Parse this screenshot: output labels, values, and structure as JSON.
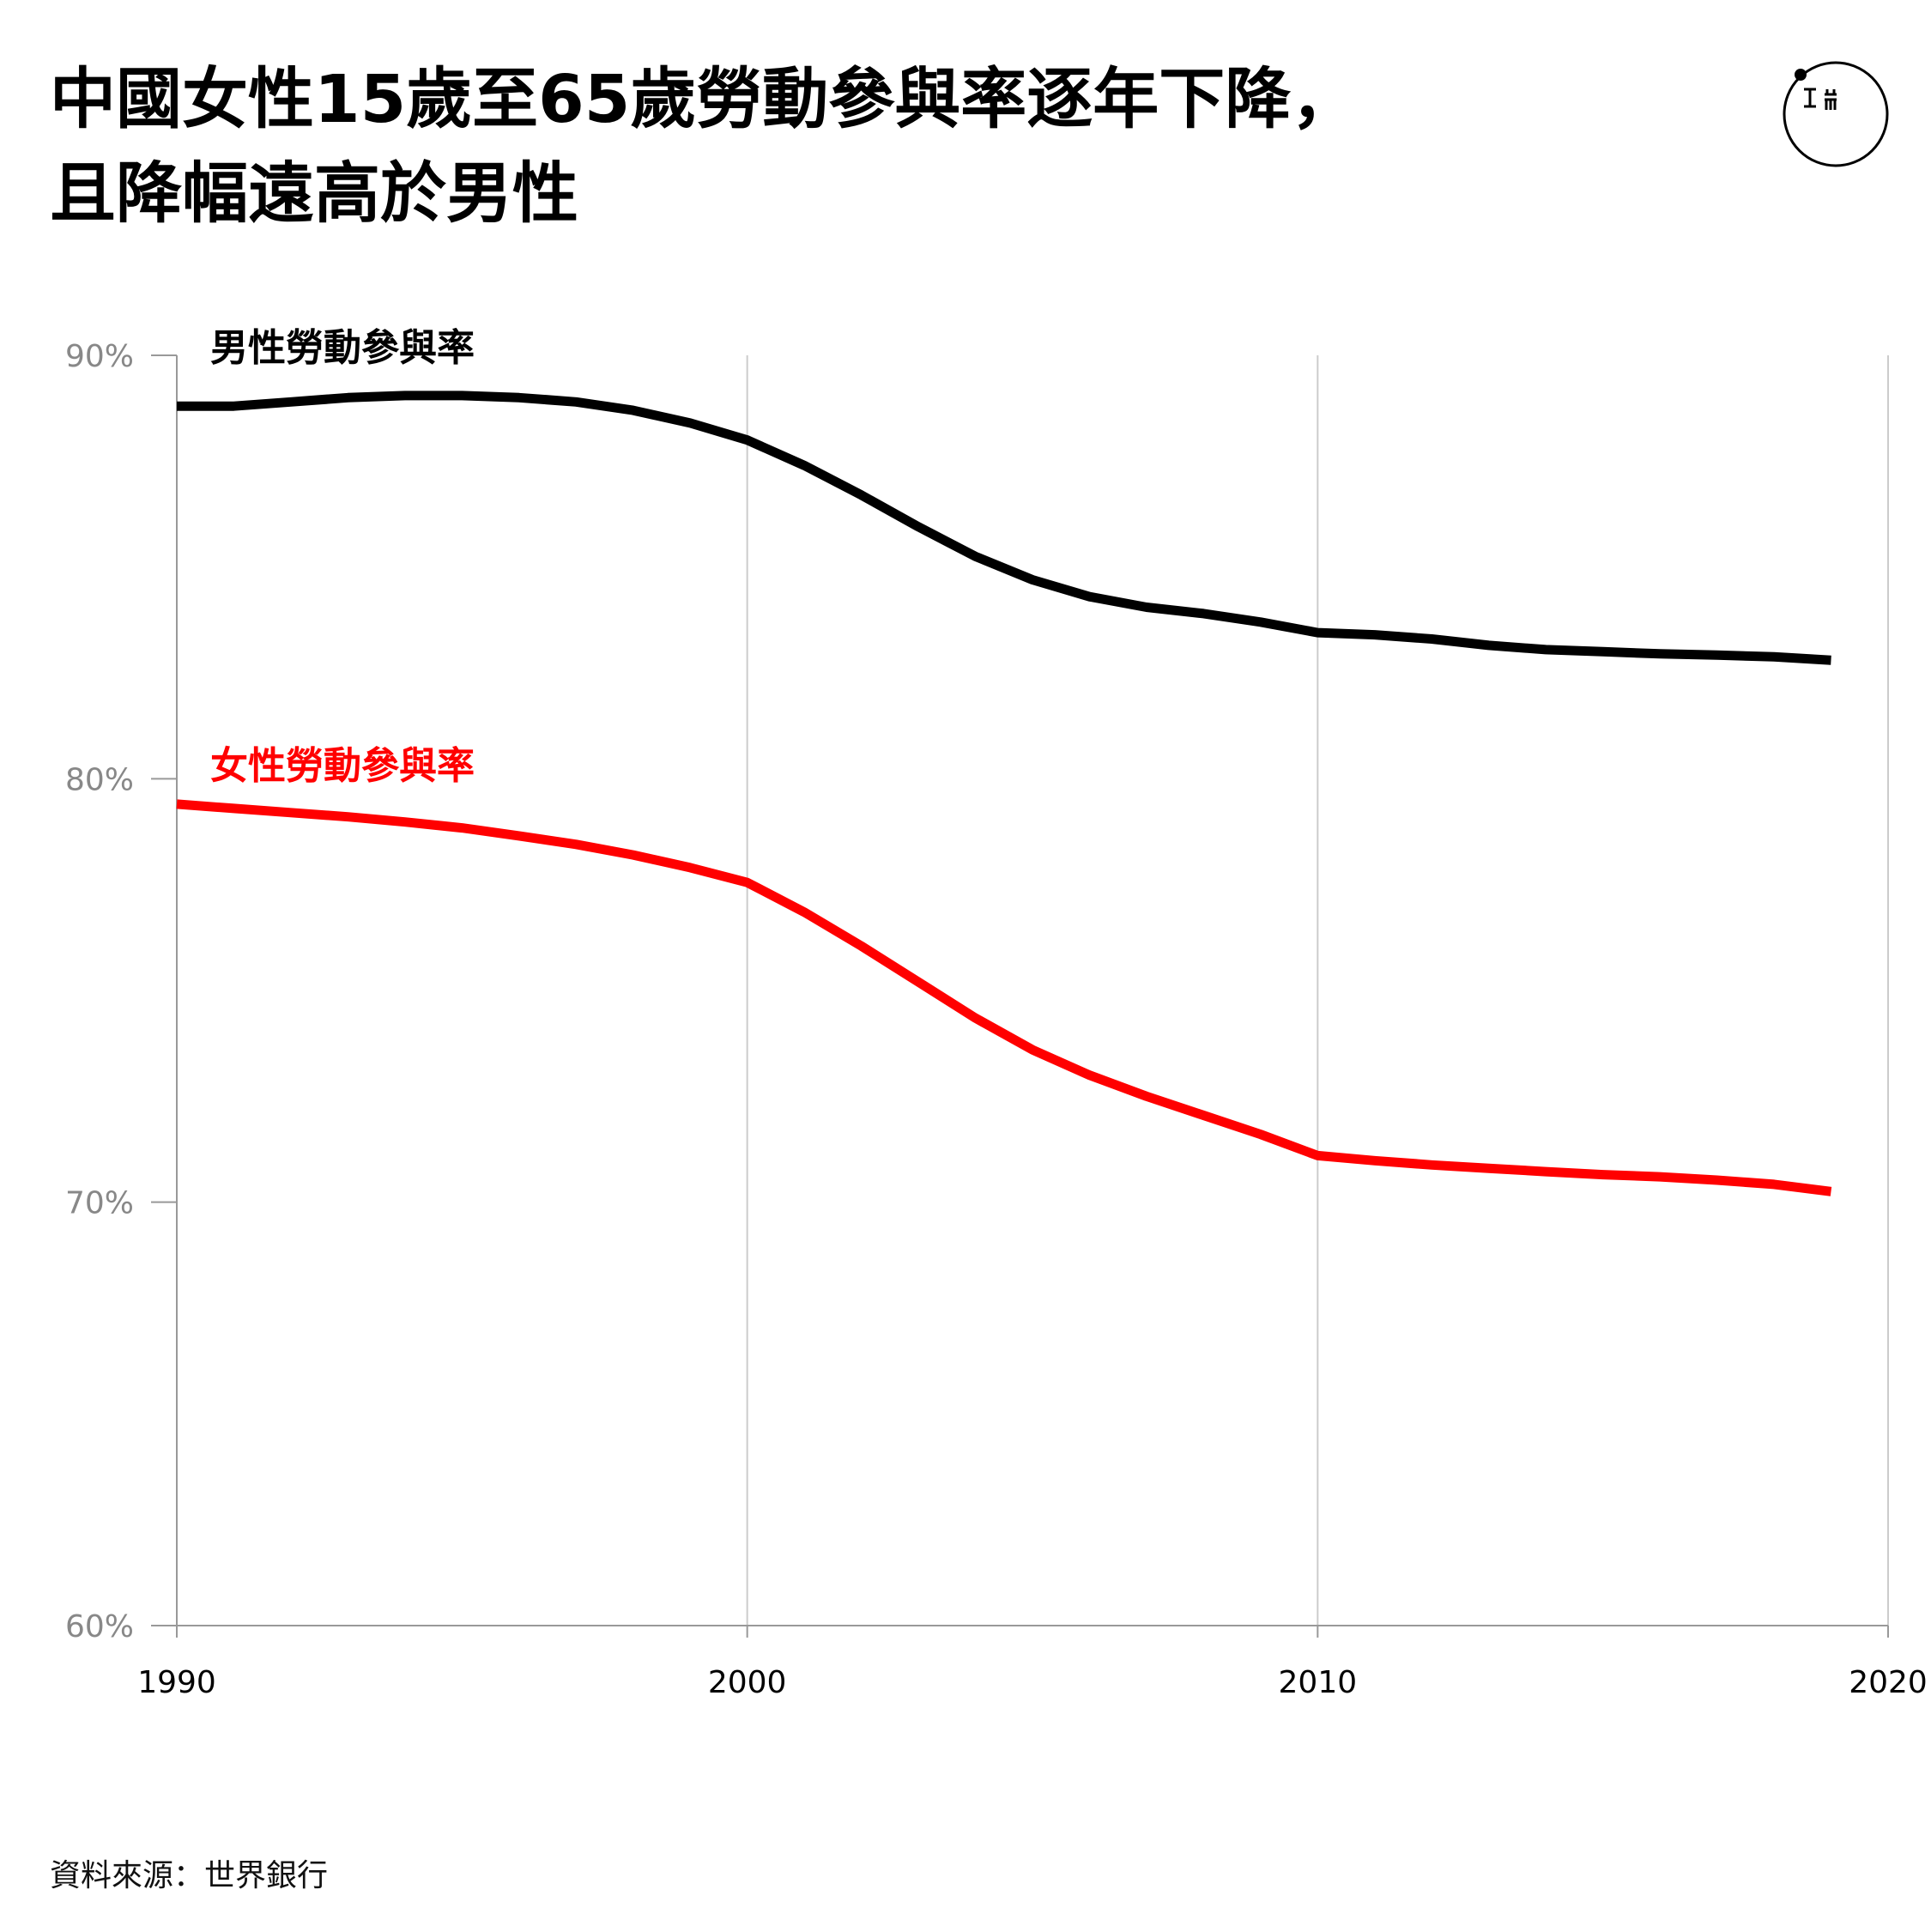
{
  "title": {
    "line1": "中國女性15歲至65歲勞動參與率逐年下降，",
    "line2": "且降幅遠高於男性"
  },
  "source": "資料來源：世界銀行",
  "logo": {
    "icon": "initium-logo-icon"
  },
  "colors": {
    "male": "#000000",
    "female": "#ff0000",
    "grid": "#cccccc",
    "axis": "#999999",
    "tick_label": "#888888"
  },
  "chart_data": {
    "type": "line",
    "x": [
      1990,
      1991,
      1992,
      1993,
      1994,
      1995,
      1996,
      1997,
      1998,
      1999,
      2000,
      2001,
      2002,
      2003,
      2004,
      2005,
      2006,
      2007,
      2008,
      2009,
      2010,
      2011,
      2012,
      2013,
      2014,
      2015,
      2016,
      2017,
      2018,
      2019
    ],
    "series": [
      {
        "name": "男性勞動參與率",
        "color": "#000000",
        "values": [
          88.8,
          88.8,
          88.9,
          89.0,
          89.05,
          89.05,
          89.0,
          88.9,
          88.7,
          88.4,
          88.0,
          87.4,
          86.7,
          85.95,
          85.25,
          84.7,
          84.3,
          84.05,
          83.9,
          83.7,
          83.45,
          83.4,
          83.3,
          83.15,
          83.05,
          83.0,
          82.95,
          82.92,
          82.88,
          82.8
        ]
      },
      {
        "name": "女性勞動參與率",
        "color": "#ff0000",
        "values": [
          79.4,
          79.3,
          79.2,
          79.1,
          78.98,
          78.84,
          78.65,
          78.45,
          78.2,
          77.9,
          77.55,
          76.85,
          76.05,
          75.2,
          74.35,
          73.6,
          73.0,
          72.5,
          72.05,
          71.6,
          71.1,
          70.98,
          70.88,
          70.8,
          70.72,
          70.65,
          70.6,
          70.52,
          70.42,
          70.25
        ]
      }
    ],
    "x_ticks": [
      "1990",
      "2000",
      "2010",
      "2020"
    ],
    "y_ticks": [
      "60%",
      "70%",
      "80%",
      "90%"
    ],
    "xlim": [
      1990,
      2020
    ],
    "ylim": [
      60,
      90
    ],
    "grid": "vertical",
    "legend": "inline-labels"
  }
}
